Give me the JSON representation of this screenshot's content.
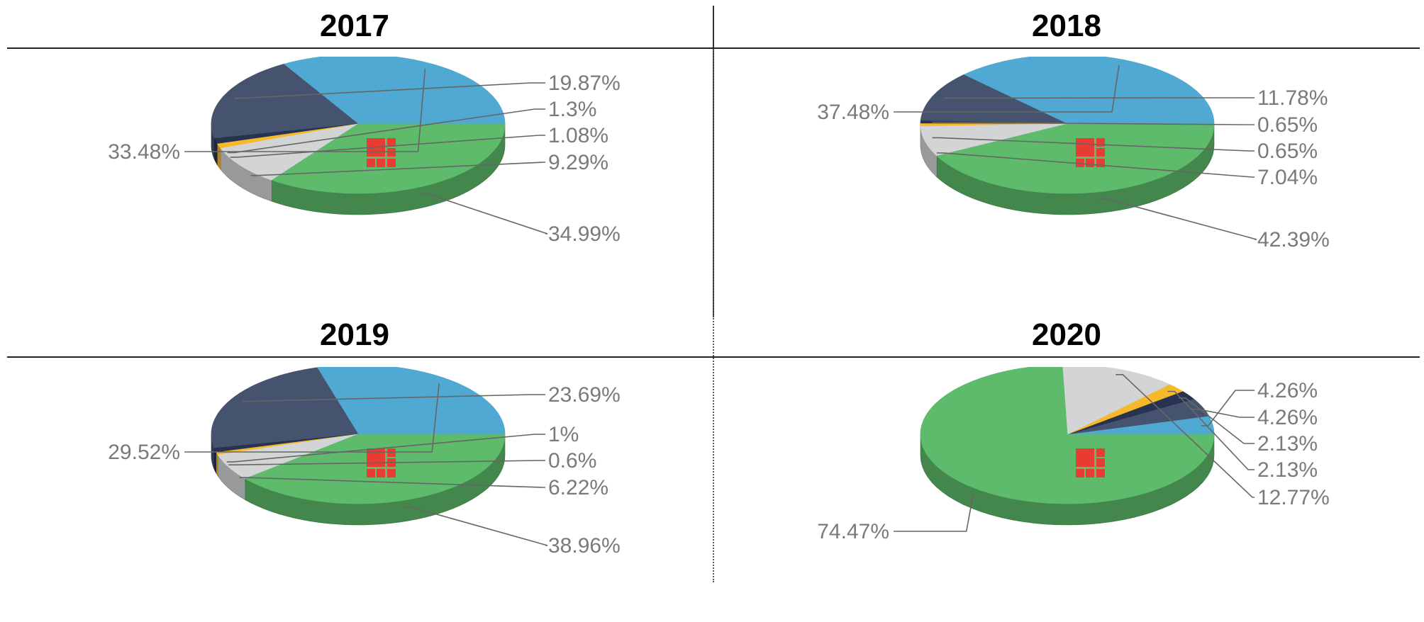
{
  "colors": {
    "light_blue": "#4fa9d2",
    "navy": "#46536f",
    "dark_navy": "#273350",
    "yellow": "#f5b92a",
    "gray": "#d3d4d6",
    "green": "#5dbb6b",
    "logo_red": "#e83c32"
  },
  "chart_data": [
    {
      "type": "pie",
      "title": "2017",
      "slices": [
        {
          "value": 33.48,
          "label": "33.48%",
          "color": "#4fa9d2"
        },
        {
          "value": 19.87,
          "label": "19.87%",
          "color": "#46536f"
        },
        {
          "value": 1.3,
          "label": "1.3%",
          "color": "#273350"
        },
        {
          "value": 1.08,
          "label": "1.08%",
          "color": "#f5b92a"
        },
        {
          "value": 9.29,
          "label": "9.29%",
          "color": "#d3d4d6"
        },
        {
          "value": 34.99,
          "label": "34.99%",
          "color": "#5dbb6b"
        }
      ]
    },
    {
      "type": "pie",
      "title": "2018",
      "slices": [
        {
          "value": 37.48,
          "label": "37.48%",
          "color": "#4fa9d2"
        },
        {
          "value": 11.78,
          "label": "11.78%",
          "color": "#46536f"
        },
        {
          "value": 0.65,
          "label": "0.65%",
          "color": "#273350"
        },
        {
          "value": 0.65,
          "label": "0.65%",
          "color": "#f5b92a"
        },
        {
          "value": 7.04,
          "label": "7.04%",
          "color": "#d3d4d6"
        },
        {
          "value": 42.39,
          "label": "42.39%",
          "color": "#5dbb6b"
        }
      ]
    },
    {
      "type": "pie",
      "title": "2019",
      "slices": [
        {
          "value": 29.52,
          "label": "29.52%",
          "color": "#4fa9d2"
        },
        {
          "value": 23.69,
          "label": "23.69%",
          "color": "#46536f"
        },
        {
          "value": 1,
          "label": "1%",
          "color": "#273350"
        },
        {
          "value": 0.6,
          "label": "0.6%",
          "color": "#f5b92a"
        },
        {
          "value": 6.22,
          "label": "6.22%",
          "color": "#d3d4d6"
        },
        {
          "value": 38.96,
          "label": "38.96%",
          "color": "#5dbb6b"
        }
      ]
    },
    {
      "type": "pie",
      "title": "2020",
      "slices": [
        {
          "value": 4.26,
          "label": "4.26%",
          "color": "#4fa9d2"
        },
        {
          "value": 4.26,
          "label": "4.26%",
          "color": "#46536f"
        },
        {
          "value": 2.13,
          "label": "2.13%",
          "color": "#273350"
        },
        {
          "value": 2.13,
          "label": "2.13%",
          "color": "#f5b92a"
        },
        {
          "value": 12.77,
          "label": "12.77%",
          "color": "#d3d4d6"
        },
        {
          "value": 74.47,
          "label": "74.47%",
          "color": "#5dbb6b"
        }
      ]
    }
  ]
}
